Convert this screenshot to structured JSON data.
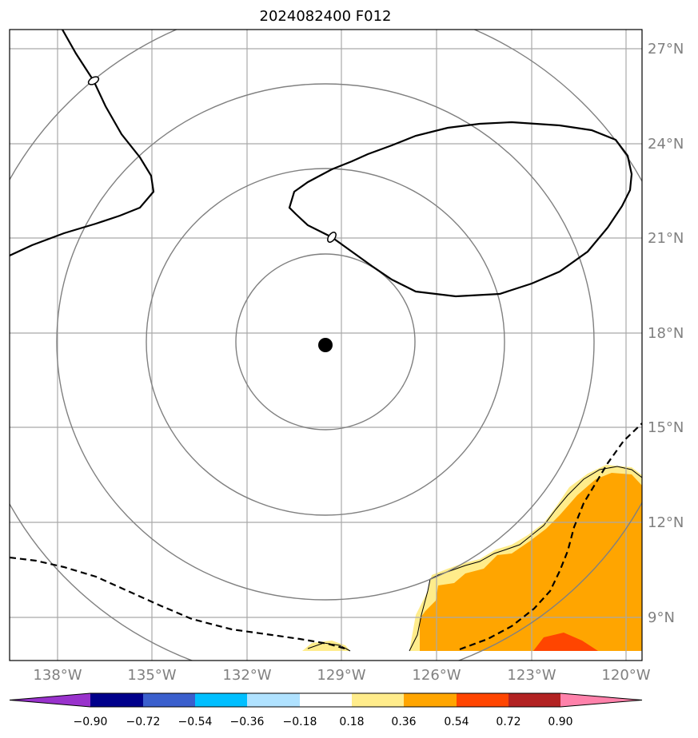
{
  "title": "2024082400 F012",
  "lon_labels": [
    "138°W",
    "135°W",
    "132°W",
    "129°W",
    "126°W",
    "123°W",
    "120°W"
  ],
  "lat_labels": [
    "27°N",
    "24°N",
    "21°N",
    "18°N",
    "15°N",
    "12°N",
    "9°N"
  ],
  "colorbar": {
    "ticks": [
      "−0.90",
      "−0.72",
      "−0.54",
      "−0.36",
      "−0.18",
      "0.18",
      "0.36",
      "0.54",
      "0.72",
      "0.90"
    ],
    "colors": [
      "#9932cc",
      "#00008b",
      "#3a5fcd",
      "#00bfff",
      "#b0e2ff",
      "#ffffff",
      "#ffec8b",
      "#ffa500",
      "#ff4500",
      "#b22222",
      "#ff82ab"
    ]
  },
  "map": {
    "storm_center": "black-dot",
    "range_rings": 4,
    "fill_colors": {
      "pale": "#ffec8b",
      "orange": "#ffa500",
      "red": "#ff4500"
    },
    "contour_color": "#000000",
    "grid_color": "#a9a9a9",
    "ring_color": "#808080"
  }
}
